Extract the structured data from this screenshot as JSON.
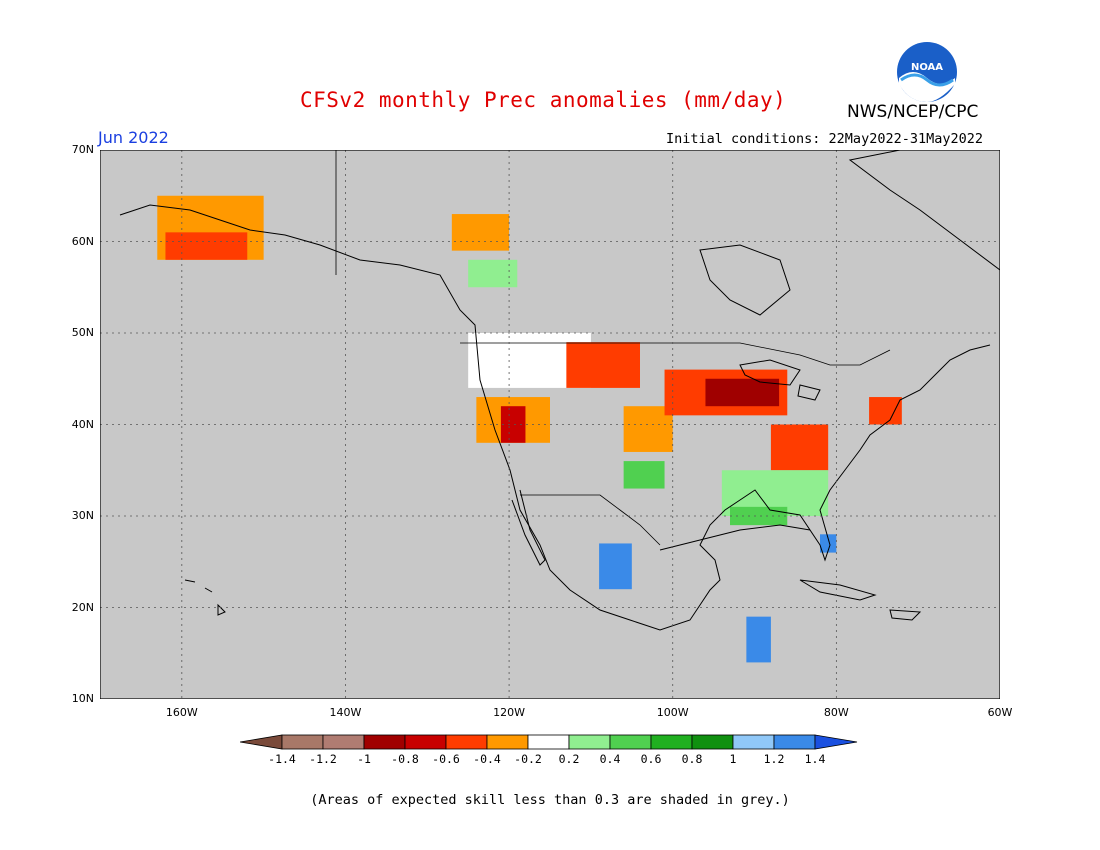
{
  "title": "CFSv2 monthly Prec anomalies (mm/day)",
  "org": "NWS/NCEP/CPC",
  "logo_text": "NOAA",
  "month": "Jun 2022",
  "initial_conditions": "Initial conditions: 22May2022-31May2022",
  "footnote": "(Areas of expected skill less than 0.3 are shaded in grey.)",
  "map": {
    "projection": "lat-lon",
    "lon_range": [
      -170,
      -60
    ],
    "lat_range": [
      10,
      70
    ],
    "lat_labels": [
      {
        "lat": 70,
        "text": "70N"
      },
      {
        "lat": 60,
        "text": "60N"
      },
      {
        "lat": 50,
        "text": "50N"
      },
      {
        "lat": 40,
        "text": "40N"
      },
      {
        "lat": 30,
        "text": "30N"
      },
      {
        "lat": 20,
        "text": "20N"
      },
      {
        "lat": 10,
        "text": "10N"
      }
    ],
    "lon_labels": [
      {
        "lon": -160,
        "text": "160W"
      },
      {
        "lon": -140,
        "text": "140W"
      },
      {
        "lon": -120,
        "text": "120W"
      },
      {
        "lon": -100,
        "text": "100W"
      },
      {
        "lon": -80,
        "text": "80W"
      },
      {
        "lon": -60,
        "text": "60W"
      }
    ],
    "grid": "dotted",
    "background_color": "#c8c8c8"
  },
  "colorbar": {
    "ticks": [
      "-1.4",
      "-1.2",
      "-1",
      "-0.8",
      "-0.6",
      "-0.4",
      "-0.2",
      "0.2",
      "0.4",
      "0.6",
      "0.8",
      "1",
      "1.2",
      "1.4"
    ],
    "colors": [
      "#7a4a3a",
      "#a87868",
      "#b07c72",
      "#a00000",
      "#c80000",
      "#ff3c00",
      "#ff9900",
      "#ffffff",
      "#90ee90",
      "#50d050",
      "#20b020",
      "#109010",
      "#90c8f8",
      "#3a8ae8",
      "#1a50e0"
    ]
  },
  "anomaly_regions": [
    {
      "category": "-0.4",
      "color": "#ff9900",
      "lon_min": -163,
      "lon_max": -150,
      "lat_min": 58,
      "lat_max": 65
    },
    {
      "category": "-0.6",
      "color": "#ff3c00",
      "lon_min": -162,
      "lon_max": -152,
      "lat_min": 58,
      "lat_max": 61
    },
    {
      "category": "-0.4",
      "color": "#ff9900",
      "lon_min": -127,
      "lon_max": -120,
      "lat_min": 59,
      "lat_max": 63
    },
    {
      "category": "0.4",
      "color": "#90ee90",
      "lon_min": -125,
      "lon_max": -119,
      "lat_min": 55,
      "lat_max": 58
    },
    {
      "category": "-0.2",
      "color": "#ffffff",
      "lon_min": -125,
      "lon_max": -110,
      "lat_min": 44,
      "lat_max": 50
    },
    {
      "category": "-0.6",
      "color": "#ff3c00",
      "lon_min": -113,
      "lon_max": -104,
      "lat_min": 44,
      "lat_max": 49
    },
    {
      "category": "-0.4",
      "color": "#ff9900",
      "lon_min": -124,
      "lon_max": -115,
      "lat_min": 38,
      "lat_max": 43
    },
    {
      "category": "-0.8",
      "color": "#c80000",
      "lon_min": -121,
      "lon_max": -118,
      "lat_min": 38,
      "lat_max": 42
    },
    {
      "category": "-0.4",
      "color": "#ff9900",
      "lon_min": -106,
      "lon_max": -100,
      "lat_min": 37,
      "lat_max": 42
    },
    {
      "category": "0.4",
      "color": "#50d050",
      "lon_min": -106,
      "lon_max": -101,
      "lat_min": 33,
      "lat_max": 36
    },
    {
      "category": "-0.6",
      "color": "#ff3c00",
      "lon_min": -101,
      "lon_max": -86,
      "lat_min": 41,
      "lat_max": 46
    },
    {
      "category": "-1",
      "color": "#a00000",
      "lon_min": -96,
      "lon_max": -87,
      "lat_min": 42,
      "lat_max": 45
    },
    {
      "category": "-0.6",
      "color": "#ff3c00",
      "lon_min": -88,
      "lon_max": -81,
      "lat_min": 35,
      "lat_max": 40
    },
    {
      "category": "0.4",
      "color": "#90ee90",
      "lon_min": -94,
      "lon_max": -81,
      "lat_min": 30,
      "lat_max": 35
    },
    {
      "category": "0.6",
      "color": "#50d050",
      "lon_min": -93,
      "lon_max": -86,
      "lat_min": 29,
      "lat_max": 31
    },
    {
      "category": "1.2",
      "color": "#3a8ae8",
      "lon_min": -82,
      "lon_max": -80,
      "lat_min": 26,
      "lat_max": 28
    },
    {
      "category": "1.2",
      "color": "#3a8ae8",
      "lon_min": -109,
      "lon_max": -105,
      "lat_min": 22,
      "lat_max": 27
    },
    {
      "category": "-0.6",
      "color": "#ff3c00",
      "lon_min": -76,
      "lon_max": -72,
      "lat_min": 40,
      "lat_max": 43
    },
    {
      "category": "1.2",
      "color": "#3a8ae8",
      "lon_min": -91,
      "lon_max": -88,
      "lat_min": 14,
      "lat_max": 19
    }
  ]
}
